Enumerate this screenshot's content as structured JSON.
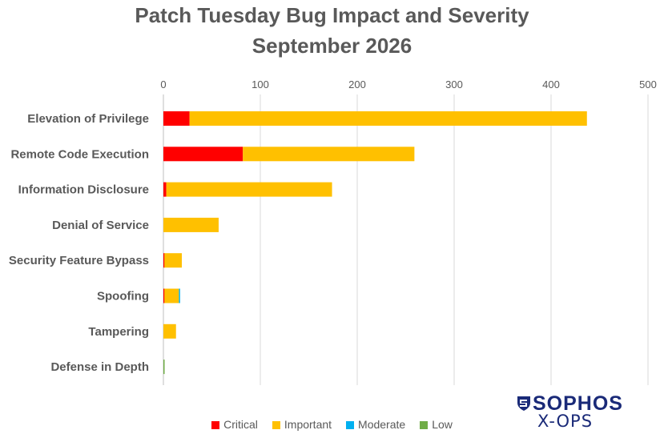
{
  "chart_data": {
    "type": "bar",
    "orientation": "horizontal",
    "stacked": true,
    "title_line1": "Patch Tuesday Bug Impact and Severity",
    "title_line2": "September 2026",
    "xlim": [
      0,
      500
    ],
    "x_ticks": [
      "0",
      "100",
      "200",
      "300",
      "400",
      "500"
    ],
    "grid": true,
    "legend_position": "bottom",
    "categories": [
      "Elevation of Privilege",
      "Remote Code Execution",
      "Information Disclosure",
      "Denial of Service",
      "Security Feature Bypass",
      "Spoofing",
      "Tampering",
      "Defense in Depth"
    ],
    "series": [
      {
        "name": "Critical",
        "color": "#ff0000",
        "values": [
          27,
          82,
          3,
          0,
          1,
          1,
          0,
          0
        ]
      },
      {
        "name": "Important",
        "color": "#ffc000",
        "values": [
          410,
          177,
          171,
          57,
          18,
          15,
          13,
          0
        ]
      },
      {
        "name": "Moderate",
        "color": "#00b0f0",
        "values": [
          0,
          0,
          0,
          0,
          0,
          1,
          0,
          0
        ]
      },
      {
        "name": "Low",
        "color": "#70ad47",
        "values": [
          0,
          0,
          0,
          0,
          0,
          0,
          0,
          1
        ]
      }
    ]
  },
  "brand": {
    "wordmark": "SOPHOS",
    "sub": "X-OPS",
    "color": "#1a2a78"
  }
}
